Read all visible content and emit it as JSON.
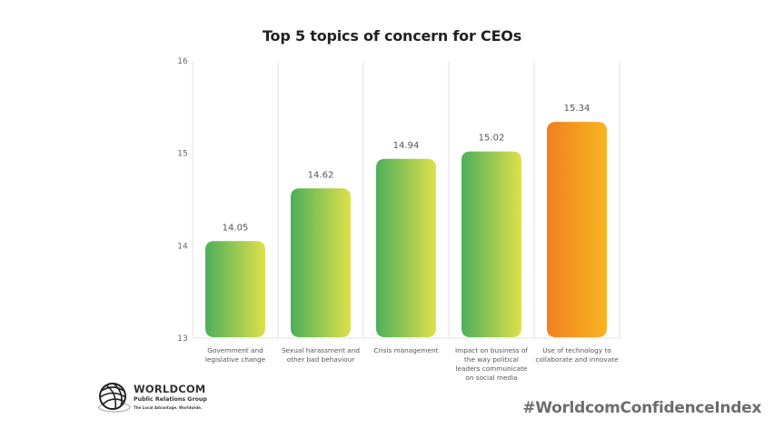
{
  "chart_data": {
    "type": "bar",
    "title": "Top 5 topics of concern for CEOs",
    "xlabel": "",
    "ylabel": "",
    "ylim": [
      13,
      16
    ],
    "yticks": [
      "13",
      "14",
      "15",
      "16"
    ],
    "grid": "vertical-separators",
    "categories": [
      [
        "Government and",
        "legislative change"
      ],
      [
        "Sexual harassment and",
        "other bad behaviour"
      ],
      [
        "Crisis management"
      ],
      [
        "Impact on business of",
        "the way political",
        "leaders communicate",
        "on social media"
      ],
      [
        "Use of technology to",
        "collaborate and innovate"
      ]
    ],
    "values": [
      14.05,
      14.62,
      14.94,
      15.02,
      15.34
    ],
    "value_labels": [
      "14.05",
      "14.62",
      "14.94",
      "15.02",
      "15.34"
    ],
    "bar_colors": [
      [
        "#4caf5a",
        "#dfe04a"
      ],
      [
        "#4caf5a",
        "#dfe04a"
      ],
      [
        "#4caf5a",
        "#dfe04a"
      ],
      [
        "#4caf5a",
        "#dfe04a"
      ],
      [
        "#f0801f",
        "#f8b421"
      ]
    ]
  },
  "logo": {
    "name": "WORLDCOM",
    "subtitle": "Public Relations Group",
    "tagline": "The Local Advantage. Worldwide.",
    "icon": "globe-icon"
  },
  "hashtag": "#WorldcomConfidenceIndex"
}
